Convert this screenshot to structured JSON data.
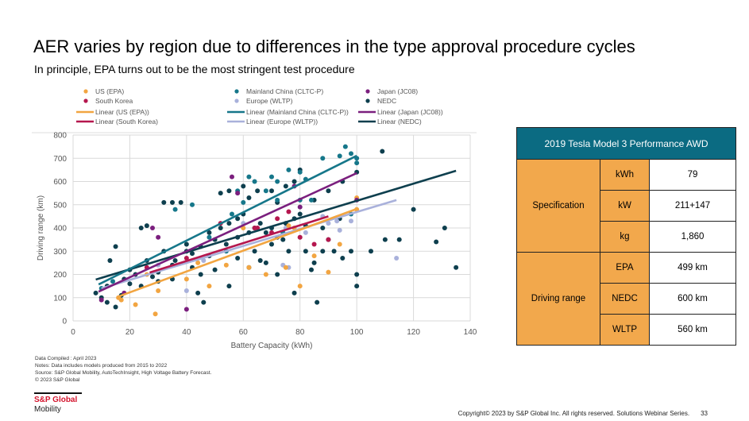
{
  "slide": {
    "title": "AER varies by region due to differences in the type approval procedure cycles",
    "subtitle": "In principle, EPA turns out to be the most stringent test procedure"
  },
  "chart_data": {
    "type": "scatter",
    "xlabel": "Battery Capacity (kWh)",
    "ylabel": "Driving range (km)",
    "xlim": [
      0,
      140
    ],
    "ylim": [
      0,
      800
    ],
    "xticks": [
      0,
      20,
      40,
      60,
      80,
      100,
      120,
      140
    ],
    "yticks": [
      0,
      100,
      200,
      300,
      400,
      500,
      600,
      700,
      800
    ],
    "grid": true,
    "legend_position": "top",
    "series": [
      {
        "name": "US (EPA)",
        "trend_name": "Linear (US (EPA))",
        "color": "#f2a541",
        "trend": [
          [
            16,
            105
          ],
          [
            100,
            482
          ]
        ],
        "points": [
          [
            17,
            90
          ],
          [
            16,
            100
          ],
          [
            22,
            70
          ],
          [
            29,
            30
          ],
          [
            30,
            130
          ],
          [
            40,
            180
          ],
          [
            48,
            150
          ],
          [
            62,
            230
          ],
          [
            68,
            200
          ],
          [
            75,
            230
          ],
          [
            80,
            150
          ],
          [
            90,
            210
          ],
          [
            100,
            530
          ],
          [
            85,
            280
          ],
          [
            94,
            330
          ],
          [
            78,
            400
          ],
          [
            76,
            410
          ],
          [
            60,
            400
          ],
          [
            54,
            240
          ],
          [
            100,
            480
          ],
          [
            26,
            200
          ],
          [
            44,
            250
          ]
        ]
      },
      {
        "name": "Mainland China (CLTC-P)",
        "trend_name": "Linear (Mainland China (CLTC-P))",
        "color": "#16778a",
        "trend": [
          [
            9,
            157
          ],
          [
            100,
            711
          ]
        ],
        "points": [
          [
            10,
            140
          ],
          [
            14,
            170
          ],
          [
            48,
            360
          ],
          [
            36,
            480
          ],
          [
            42,
            500
          ],
          [
            58,
            560
          ],
          [
            62,
            620
          ],
          [
            64,
            600
          ],
          [
            68,
            560
          ],
          [
            70,
            620
          ],
          [
            72,
            600
          ],
          [
            76,
            650
          ],
          [
            80,
            640
          ],
          [
            82,
            610
          ],
          [
            88,
            700
          ],
          [
            94,
            710
          ],
          [
            96,
            750
          ],
          [
            98,
            720
          ],
          [
            100,
            700
          ],
          [
            100,
            680
          ],
          [
            72,
            520
          ],
          [
            84,
            520
          ],
          [
            60,
            510
          ],
          [
            56,
            460
          ],
          [
            80,
            520
          ],
          [
            98,
            460
          ],
          [
            54,
            300
          ],
          [
            74,
            380
          ]
        ]
      },
      {
        "name": "Japan (JC08)",
        "trend_name": "Linear (Japan (JC08))",
        "color": "#7b1f7e",
        "trend": [
          [
            9,
            126
          ],
          [
            100,
            636
          ]
        ],
        "points": [
          [
            10,
            90
          ],
          [
            18,
            120
          ],
          [
            40,
            50
          ],
          [
            28,
            400
          ],
          [
            30,
            360
          ],
          [
            56,
            620
          ],
          [
            58,
            550
          ],
          [
            80,
            490
          ],
          [
            78,
            580
          ],
          [
            100,
            520
          ]
        ]
      },
      {
        "name": "South Korea",
        "trend_name": "Linear (South Korea)",
        "color": "#b5174e",
        "trend": [
          [
            27,
            208
          ],
          [
            90,
            450
          ]
        ],
        "points": [
          [
            26,
            230
          ],
          [
            40,
            270
          ],
          [
            52,
            420
          ],
          [
            65,
            400
          ],
          [
            70,
            380
          ],
          [
            72,
            440
          ],
          [
            76,
            470
          ],
          [
            80,
            360
          ],
          [
            85,
            330
          ],
          [
            90,
            350
          ],
          [
            64,
            400
          ]
        ]
      },
      {
        "name": "Europe (WLTP)",
        "trend_name": "Linear (Europe (WLTP))",
        "color": "#a9b1db",
        "trend": [
          [
            10,
            140
          ],
          [
            114,
            520
          ]
        ],
        "points": [
          [
            30,
            240
          ],
          [
            46,
            260
          ],
          [
            60,
            420
          ],
          [
            70,
            380
          ],
          [
            75,
            400
          ],
          [
            80,
            360
          ],
          [
            82,
            380
          ],
          [
            88,
            450
          ],
          [
            90,
            420
          ],
          [
            93,
            430
          ],
          [
            94,
            390
          ],
          [
            98,
            430
          ],
          [
            114,
            270
          ],
          [
            74,
            240
          ],
          [
            76,
            230
          ],
          [
            40,
            130
          ]
        ]
      },
      {
        "name": "NEDC",
        "trend_name": "Linear (NEDC)",
        "color": "#0e3f4e",
        "trend": [
          [
            8,
            178
          ],
          [
            135,
            646
          ]
        ],
        "points": [
          [
            8,
            120
          ],
          [
            10,
            100
          ],
          [
            12,
            80
          ],
          [
            15,
            60
          ],
          [
            17,
            110
          ],
          [
            12,
            150
          ],
          [
            15,
            320
          ],
          [
            13,
            260
          ],
          [
            24,
            400
          ],
          [
            26,
            410
          ],
          [
            32,
            510
          ],
          [
            35,
            510
          ],
          [
            38,
            510
          ],
          [
            24,
            150
          ],
          [
            30,
            210
          ],
          [
            35,
            240
          ],
          [
            40,
            300
          ],
          [
            42,
            290
          ],
          [
            45,
            320
          ],
          [
            48,
            380
          ],
          [
            50,
            350
          ],
          [
            52,
            400
          ],
          [
            55,
            420
          ],
          [
            58,
            440
          ],
          [
            60,
            460
          ],
          [
            62,
            380
          ],
          [
            64,
            400
          ],
          [
            66,
            420
          ],
          [
            68,
            380
          ],
          [
            70,
            400
          ],
          [
            72,
            360
          ],
          [
            75,
            420
          ],
          [
            78,
            440
          ],
          [
            80,
            460
          ],
          [
            82,
            300
          ],
          [
            85,
            250
          ],
          [
            88,
            300
          ],
          [
            90,
            350
          ],
          [
            92,
            300
          ],
          [
            95,
            270
          ],
          [
            100,
            200
          ],
          [
            100,
            150
          ],
          [
            98,
            300
          ],
          [
            52,
            550
          ],
          [
            55,
            560
          ],
          [
            60,
            580
          ],
          [
            62,
            530
          ],
          [
            65,
            560
          ],
          [
            70,
            560
          ],
          [
            72,
            510
          ],
          [
            75,
            580
          ],
          [
            78,
            600
          ],
          [
            80,
            650
          ],
          [
            85,
            520
          ],
          [
            90,
            560
          ],
          [
            95,
            600
          ],
          [
            100,
            640
          ],
          [
            109,
            730
          ],
          [
            105,
            300
          ],
          [
            110,
            350
          ],
          [
            115,
            350
          ],
          [
            120,
            480
          ],
          [
            128,
            340
          ],
          [
            131,
            400
          ],
          [
            135,
            230
          ],
          [
            86,
            80
          ],
          [
            78,
            120
          ],
          [
            72,
            200
          ],
          [
            68,
            250
          ],
          [
            58,
            270
          ],
          [
            50,
            220
          ],
          [
            45,
            200
          ],
          [
            35,
            180
          ],
          [
            28,
            190
          ],
          [
            20,
            160
          ],
          [
            22,
            200
          ],
          [
            18,
            180
          ],
          [
            55,
            150
          ],
          [
            40,
            330
          ],
          [
            32,
            300
          ],
          [
            44,
            120
          ],
          [
            46,
            80
          ],
          [
            62,
            230
          ],
          [
            66,
            260
          ],
          [
            74,
            350
          ],
          [
            84,
            220
          ],
          [
            20,
            220
          ],
          [
            26,
            260
          ],
          [
            30,
            170
          ],
          [
            36,
            260
          ],
          [
            42,
            230
          ],
          [
            48,
            280
          ],
          [
            54,
            330
          ],
          [
            58,
            360
          ],
          [
            64,
            300
          ],
          [
            70,
            330
          ],
          [
            76,
            300
          ],
          [
            82,
            410
          ],
          [
            88,
            400
          ],
          [
            94,
            440
          ]
        ]
      }
    ]
  },
  "table": {
    "header": "2019 Tesla Model 3 Performance AWD",
    "groups": [
      {
        "label": "Specification",
        "rows": [
          {
            "unit": "kWh",
            "value": "79"
          },
          {
            "unit": "kW",
            "value": "211+147"
          },
          {
            "unit": "kg",
            "value": "1,860"
          }
        ]
      },
      {
        "label": "Driving range",
        "rows": [
          {
            "unit": "EPA",
            "value": "499 km"
          },
          {
            "unit": "NEDC",
            "value": "600 km"
          },
          {
            "unit": "WLTP",
            "value": "560 km"
          }
        ]
      }
    ]
  },
  "notes": [
    "Data Compiled : April 2023",
    "Notes: Data includes models produced from 2015 to 2022",
    "Source: S&P Global Mobility, AutoTechInsight, High Voltage Battery Forecast.",
    "© 2023 S&P Global"
  ],
  "logo": {
    "line1": "S&P Global",
    "line2": "Mobility"
  },
  "footer": {
    "copyright": "Copyright© 2023 by S&P Global Inc. All rights reserved. Solutions Webinar Series.",
    "page": "33"
  }
}
